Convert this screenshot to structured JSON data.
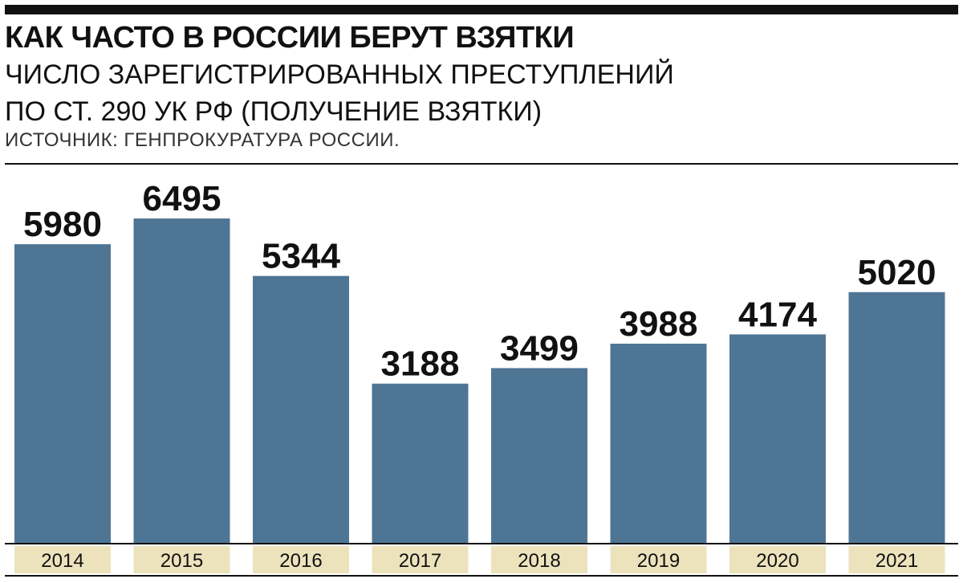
{
  "header": {
    "title": "КАК ЧАСТО В РОССИИ БЕРУТ ВЗЯТКИ",
    "subtitle_line1": "ЧИСЛО ЗАРЕГИСТРИРОВАННЫХ ПРЕСТУПЛЕНИЙ",
    "subtitle_line2": "ПО СТ. 290 УК РФ (ПОЛУЧЕНИЕ ВЗЯТКИ)",
    "source": "ИСТОЧНИК: ГЕНПРОКУРАТУРА РОССИИ."
  },
  "colors": {
    "bar": "#4f7594",
    "label_band": "#ece3bd",
    "text": "#111111"
  },
  "chart_data": {
    "type": "bar",
    "title": "КАК ЧАСТО В РОССИИ БЕРУТ ВЗЯТКИ",
    "xlabel": "",
    "ylabel": "",
    "ylim": [
      0,
      7300
    ],
    "grid": false,
    "categories": [
      "2014",
      "2015",
      "2016",
      "2017",
      "2018",
      "2019",
      "2020",
      "2021"
    ],
    "values": [
      5980,
      6495,
      5344,
      3188,
      3499,
      3988,
      4174,
      5020
    ],
    "value_labels": [
      "5980",
      "6495",
      "5344",
      "3188",
      "3499",
      "3988",
      "4174",
      "5020"
    ]
  }
}
